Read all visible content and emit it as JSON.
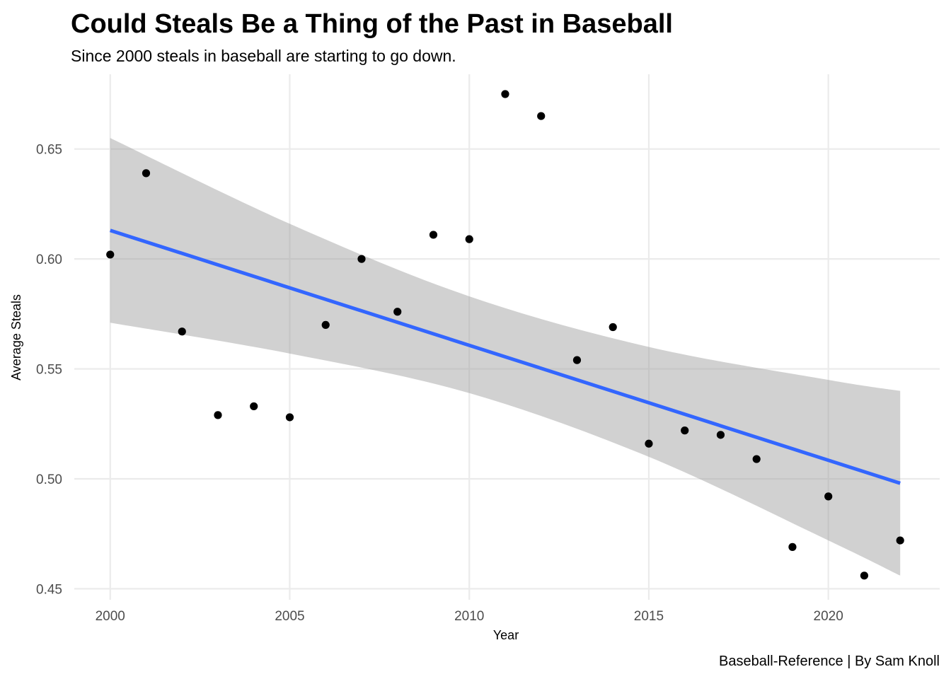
{
  "chart_data": {
    "type": "scatter",
    "title": "Could Steals Be a Thing of the Past in Baseball",
    "subtitle": "Since 2000 steals in baseball are starting to go down.",
    "xlabel": "Year",
    "ylabel": "Average Steals",
    "caption": "Baseball-Reference | By Sam Knoll",
    "xlim": [
      1999,
      2023.1
    ],
    "ylim": [
      0.445,
      0.684
    ],
    "x_ticks": [
      2000,
      2005,
      2010,
      2015,
      2020
    ],
    "x_tick_labels": [
      "2000",
      "2005",
      "2010",
      "2015",
      "2020"
    ],
    "y_ticks": [
      0.45,
      0.5,
      0.55,
      0.6,
      0.65
    ],
    "y_tick_labels": [
      "0.45",
      "0.50",
      "0.55",
      "0.60",
      "0.65"
    ],
    "grid": true,
    "legend": "none",
    "x": [
      2000,
      2001,
      2002,
      2003,
      2004,
      2005,
      2006,
      2007,
      2008,
      2009,
      2010,
      2011,
      2012,
      2013,
      2014,
      2015,
      2016,
      2017,
      2018,
      2019,
      2020,
      2021,
      2022
    ],
    "y": [
      0.602,
      0.639,
      0.567,
      0.529,
      0.533,
      0.528,
      0.57,
      0.6,
      0.576,
      0.611,
      0.609,
      0.675,
      0.665,
      0.554,
      0.569,
      0.516,
      0.522,
      0.52,
      0.509,
      0.469,
      0.492,
      0.456,
      0.472
    ],
    "trend_line": {
      "method": "linear",
      "x": [
        2000,
        2022
      ],
      "y": [
        0.613,
        0.498
      ],
      "color": "#3366ff"
    },
    "confidence_band": {
      "x": [
        2000,
        2005,
        2010,
        2015,
        2020,
        2022
      ],
      "upper": [
        0.655,
        0.616,
        0.583,
        0.56,
        0.545,
        0.54
      ],
      "lower": [
        0.571,
        0.557,
        0.539,
        0.51,
        0.472,
        0.456
      ],
      "color": "#999999"
    },
    "point_color": "#000000"
  }
}
